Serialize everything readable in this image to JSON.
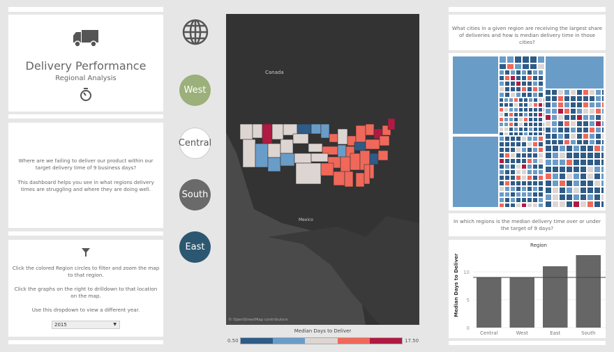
{
  "header": {
    "title": "Delivery Performance",
    "subtitle": "Regional Analysis",
    "truck_icon": "truck-icon",
    "timer_icon": "stopwatch-icon"
  },
  "intro": {
    "question": "Where are we failing to deliver our product within our target delivery time of 9 business days?",
    "description": "This dashboard helps you see in what regions delivery times are struggling and where they are doing well."
  },
  "instructions": {
    "filter_icon": "filter-icon",
    "line1": "Click the colored Region circles to filter and zoom the map to that region.",
    "line2": "Click the graphs on the right to drilldown to that location on the map.",
    "line3": "Use this dropdown to view a different year.",
    "year": "2015"
  },
  "regions": [
    {
      "label": "West",
      "color": "#9bb07a"
    },
    {
      "label": "Central",
      "color": "#ffffff"
    },
    {
      "label": "South",
      "color": "#6a6a6a"
    },
    {
      "label": "East",
      "color": "#2c5770"
    }
  ],
  "map": {
    "labels": {
      "canada": "Canada",
      "mexico": "Mexico"
    },
    "attribution": "© OpenStreetMap contributors"
  },
  "legend": {
    "title": "Median Days to Deliver",
    "min": "0.50",
    "max": "17.50",
    "colors": [
      "#2f5b87",
      "#6a9cc8",
      "#ddd5d2",
      "#f0685a",
      "#b01a42"
    ]
  },
  "treemap": {
    "question": "What cities in a given region are receiving the largest share of deliveries and how is median delivery time in those cities?"
  },
  "bar_question": "In which regions is the median delivery time over or under the target of 9 days?",
  "chart_data": {
    "type": "bar",
    "title": "Region",
    "ylabel": "Median Days to Deliver",
    "categories": [
      "Central",
      "West",
      "East",
      "South"
    ],
    "values": [
      9,
      9,
      11,
      13
    ],
    "ylim": [
      0,
      14
    ],
    "yticks": [
      0,
      5,
      10
    ],
    "reference_line": 9,
    "bar_color": "#666666",
    "grid": true
  }
}
